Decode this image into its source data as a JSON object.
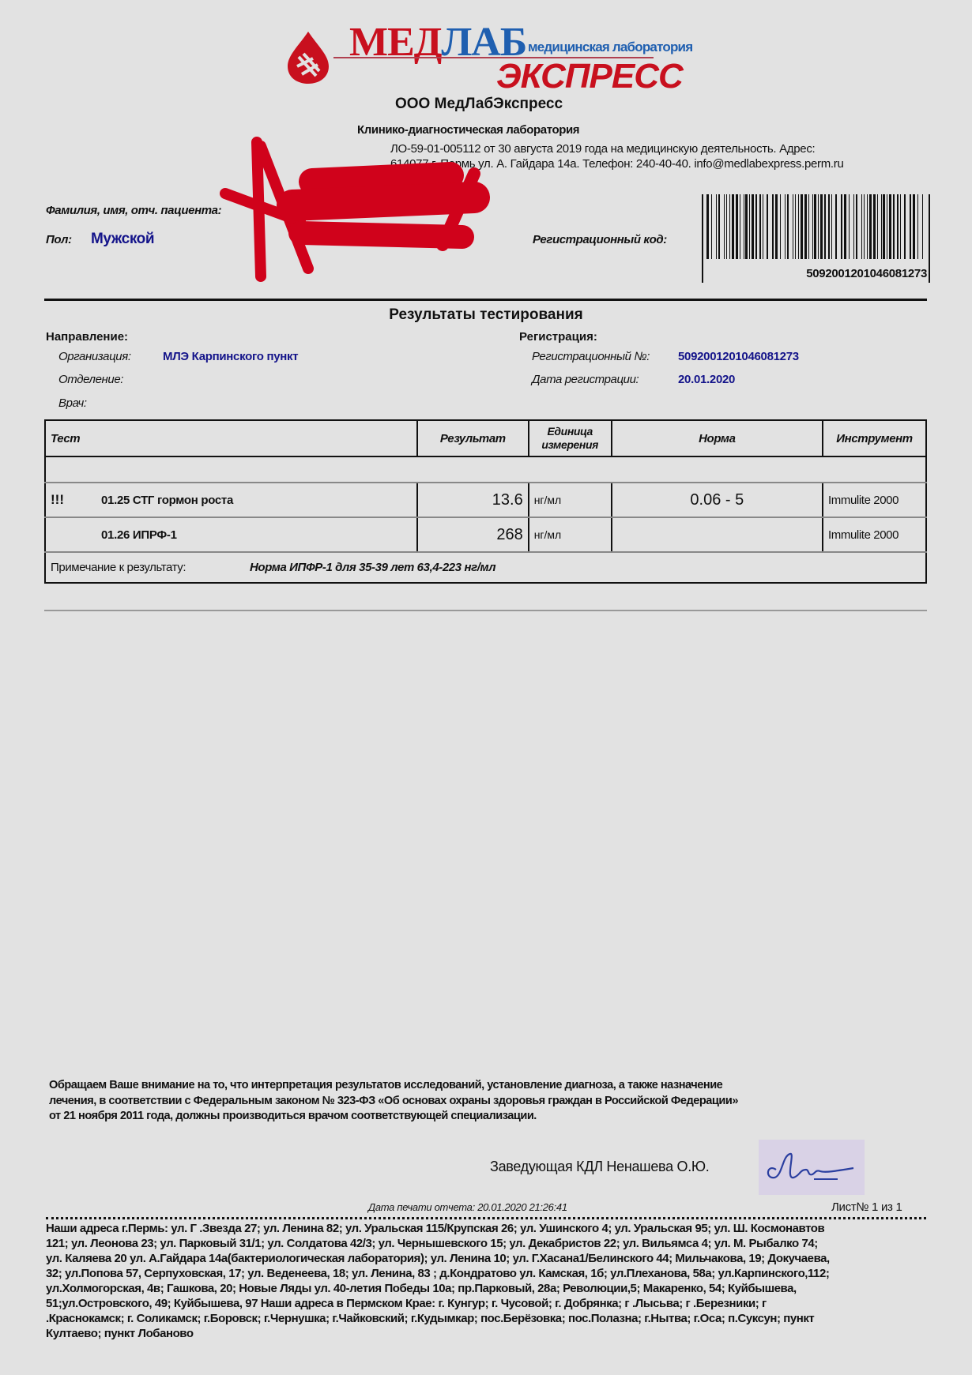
{
  "logo": {
    "word1_red": "МЕД",
    "word1_blue": "ЛАБ",
    "word2": "ЭКСПРЕСС",
    "tagline": "медицинская лаборатория",
    "colors": {
      "red": "#c8101e",
      "blue": "#1f5fb0"
    }
  },
  "header": {
    "company": "ООО МедЛабЭкспресс",
    "subtitle": "Клинико-диагностическая лаборатория",
    "license_line1": "ЛО-59-01-005112 от 30 августа 2019 года на медицинскую деятельность.  Адрес:",
    "license_line2": "614077 г. Пермь ул. А. Гайдара 14а. Телефон: 240-40-40.  info@medlabexpress.perm.ru"
  },
  "patient": {
    "name_label": "Фамилия, имя, отч. пациента:",
    "sex_label": "Пол:",
    "sex_value": "Мужской",
    "reg_code_label": "Регистрационный код:",
    "barcode_number": "5092001201046081273"
  },
  "results_title": "Результаты тестирования",
  "referral": {
    "heading": "Направление:",
    "org_label": "Организация:",
    "org_value": "МЛЭ Карпинского пункт",
    "dept_label": "Отделение:",
    "doctor_label": "Врач:"
  },
  "registration": {
    "heading": "Регистрация:",
    "number_label": "Регистрационный №:",
    "number_value": "5092001201046081273",
    "date_label": "Дата регистрации:",
    "date_value": "20.01.2020"
  },
  "table": {
    "headers": [
      "Тест",
      "Результат",
      "Единица измерения",
      "Норма",
      "Инструмент"
    ],
    "rows": [
      {
        "flag": "!!!",
        "test": "01.25 СТГ гормон роста",
        "result": "13.6",
        "unit": "нг/мл",
        "norm": "0.06 - 5",
        "instrument": "Immulite 2000"
      },
      {
        "flag": "",
        "test": "01.26 ИПРФ-1",
        "result": "268",
        "unit": "нг/мл",
        "norm": "",
        "instrument": "Immulite 2000"
      }
    ],
    "note_label": "Примечание к результату:",
    "note_value": "Норма ИПФР-1 для 35-39 лет 63,4-223 нг/мл"
  },
  "disclaimer": [
    "Обращаем Ваше внимание на то, что интерпретация результатов исследований, установление диагноза, а также назначение",
    "лечения, в соответствии с Федеральным законом № 323-ФЗ «Об основах охраны здоровья граждан в Российской Федерации»",
    "от 21 ноября 2011 года, должны производиться врачом соответствующей специализации."
  ],
  "signature": {
    "text": "Заведующая КДЛ  Ненашева О.Ю."
  },
  "print_info": {
    "print_date": "Дата печати отчета: 20.01.2020 21:26:41",
    "page": "Лист№ 1 из 1"
  },
  "addresses": [
    "Наши адреса г.Пермь:  ул. Г .Звезда 27; ул. Ленина 82; ул. Уральская 115/Крупская 26; ул. Ушинского 4; ул. Уральская 95; ул. Ш. Космонавтов",
    "121; ул. Леонова 23;  ул. Парковый 31/1; ул. Солдатова 42/3; ул. Чернышевского 15; ул. Декабристов 22; ул. Вильямса 4; ул. М. Рыбалко 74;",
    "ул. Каляева 20  ул. А.Гайдара 14а(бактериологическая лаборатория); ул. Ленина 10; ул. Г.Хасана1/Белинского 44; Мильчакова, 19; Докучаева,",
    "32; ул.Попова 57, Серпуховская, 17; ул. Веденеева, 18; ул. Ленина, 83 ; д.Кондратово ул. Камская, 1б; ул.Плеханова, 58а; ул.Карпинского,112;",
    "ул.Холмогорская, 4в; Гашкова, 20;  Новые  Ляды ул. 40-летия Победы 10а; пр.Парковый, 28а; Революции,5; Макаренко, 54; Куйбышева,",
    "51;ул.Островского, 49; Куйбышева, 97  Наши адреса в Пермском Крае:  г. Кунгур; г. Чусовой; г. Добрянка; г .Лысьва; г .Березники; г",
    ".Краснокамск; г. Соликамск; г.Боровск; г.Чернушка; г.Чайковский; г.Кудымкар;  пос.Берёзовка; пос.Полазна; г.Нытва; г.Оса; п.Суксун; пункт",
    "Култаево; пункт Лобаново"
  ]
}
